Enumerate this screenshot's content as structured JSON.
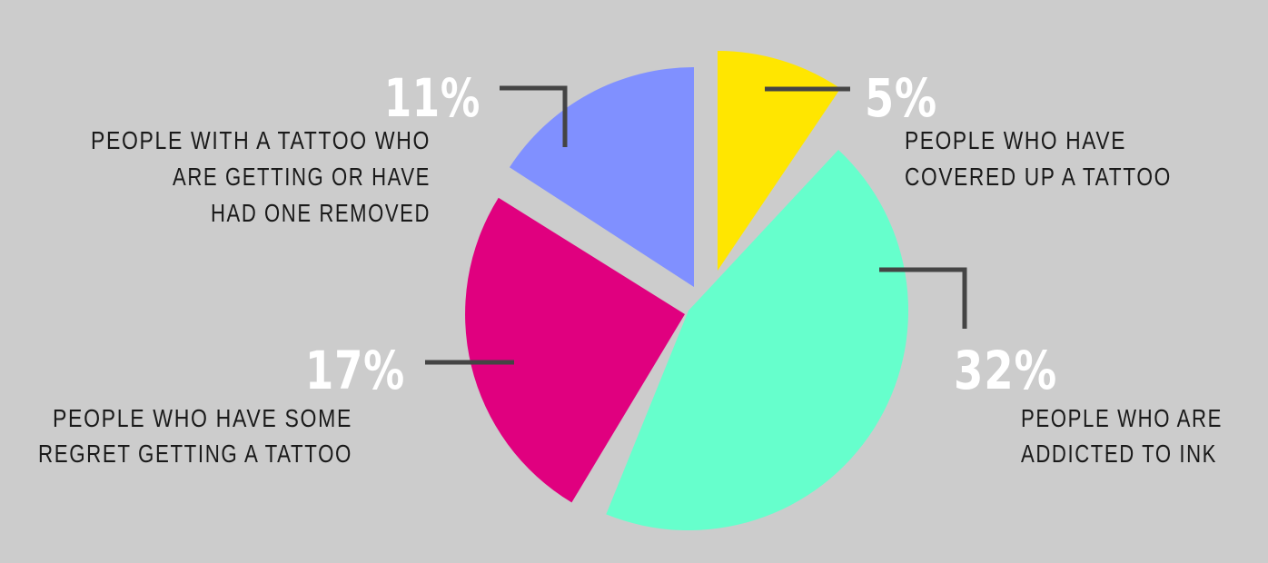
{
  "chart_data": {
    "type": "pie",
    "slices": [
      {
        "id": "covered",
        "value_label": "5%",
        "value": 5,
        "color": "#ffe600",
        "label_lines": [
          "PEOPLE WHO HAVE",
          "COVERED UP A TATTOO"
        ]
      },
      {
        "id": "addicted",
        "value_label": "32%",
        "value": 32,
        "color": "#66ffcc",
        "label_lines": [
          "PEOPLE WHO ARE",
          "ADDICTED TO INK"
        ]
      },
      {
        "id": "regret",
        "value_label": "17%",
        "value": 17,
        "color": "#e0007f",
        "label_lines": [
          "PEOPLE WHO  HAVE SOME",
          "REGRET GETTING A TATTOO"
        ]
      },
      {
        "id": "removed",
        "value_label": "11%",
        "value": 11,
        "color": "#8090ff",
        "label_lines": [
          "PEOPLE WITH A TATTOO WHO",
          "ARE GETTING OR HAVE",
          "HAD ONE REMOVED"
        ]
      }
    ],
    "legend": "none",
    "exploded": true
  },
  "colors": {
    "background": "#cccccc",
    "leader_line": "#444444",
    "percent_text": "#ffffff",
    "label_text": "#1a1a1a"
  }
}
